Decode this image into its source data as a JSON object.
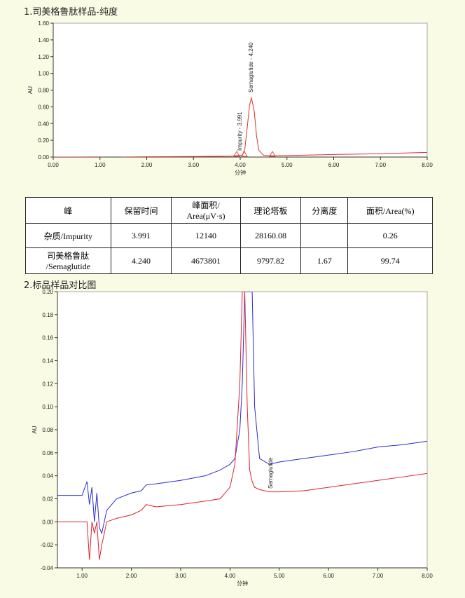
{
  "chart_data": [
    {
      "type": "line",
      "title": "1.司美格鲁肽样品-纯度",
      "xlabel": "分钟",
      "ylabel": "AU",
      "color": "#e0302a",
      "annotations": [
        "Impurity - 3.991",
        "Semaglutide - 4.240"
      ],
      "x": [
        0,
        0.5,
        0.95,
        1.0,
        1.05,
        1.1,
        1.2,
        1.3,
        1.4,
        1.5,
        2.0,
        3.0,
        3.8,
        3.95,
        3.99,
        4.05,
        4.1,
        4.15,
        4.2,
        4.24,
        4.3,
        4.35,
        4.4,
        4.5,
        4.7,
        5,
        6,
        7,
        8
      ],
      "values": [
        0,
        0,
        0.001,
        -0.005,
        0.002,
        -0.01,
        -0.005,
        -0.02,
        -0.005,
        0,
        0.003,
        0.006,
        0.01,
        0.018,
        0.02,
        0.025,
        0.1,
        0.35,
        0.62,
        0.71,
        0.55,
        0.25,
        0.08,
        0.02,
        0.015,
        0.018,
        0.03,
        0.04,
        0.055
      ],
      "xlim": [
        0,
        8
      ],
      "ylim": [
        0,
        1.6
      ],
      "xticks": [
        {
          "value": 0,
          "label": "0.00"
        },
        {
          "value": 1,
          "label": "1.00"
        },
        {
          "value": 2,
          "label": "2.00"
        },
        {
          "value": 3,
          "label": "3.00"
        },
        {
          "value": 4,
          "label": "4.00"
        },
        {
          "value": 5,
          "label": "5.00"
        },
        {
          "value": 6,
          "label": "6.00"
        },
        {
          "value": 7,
          "label": "7.00"
        },
        {
          "value": 8,
          "label": "8.00"
        }
      ],
      "yticks": [
        {
          "value": 0,
          "label": "0.00"
        },
        {
          "value": 0.2,
          "label": "0.20"
        },
        {
          "value": 0.4,
          "label": "0.40"
        },
        {
          "value": 0.6,
          "label": "0.60"
        },
        {
          "value": 0.8,
          "label": "0.80"
        },
        {
          "value": 1.0,
          "label": "1.00"
        },
        {
          "value": 1.2,
          "label": "1.20"
        },
        {
          "value": 1.4,
          "label": "1.40"
        },
        {
          "value": 1.6,
          "label": "1.60"
        }
      ]
    },
    {
      "type": "line",
      "title": "2.标品样品对比图",
      "xlabel": "分钟",
      "ylabel": "AU",
      "annotations": [
        "Semaglutide"
      ],
      "x": [
        0.5,
        1.0,
        1.1,
        1.15,
        1.2,
        1.25,
        1.3,
        1.35,
        1.4,
        1.5,
        1.7,
        2.0,
        2.2,
        2.3,
        2.5,
        3.0,
        3.5,
        3.8,
        4.0,
        4.1,
        4.2,
        4.25,
        4.3,
        4.35,
        4.4,
        4.45,
        4.5,
        4.6,
        4.8,
        5.0,
        5.5,
        6.0,
        6.5,
        7.0,
        7.5,
        8.0
      ],
      "series": [
        {
          "color": "#2a2ad0",
          "values": [
            0.023,
            0.023,
            0.035,
            0.015,
            0.03,
            0.0,
            0.025,
            -0.005,
            -0.01,
            0.01,
            0.02,
            0.025,
            0.027,
            0.032,
            0.033,
            0.036,
            0.04,
            0.045,
            0.05,
            0.055,
            0.08,
            0.12,
            0.2,
            0.2,
            0.2,
            0.2,
            0.1,
            0.055,
            0.05,
            0.052,
            0.055,
            0.058,
            0.061,
            0.065,
            0.067,
            0.07
          ]
        },
        {
          "color": "#e0202a",
          "values": [
            0.0,
            0.0,
            0.0,
            -0.033,
            0.0,
            -0.01,
            0.0,
            -0.033,
            -0.02,
            0.0,
            0.003,
            0.006,
            0.01,
            0.015,
            0.013,
            0.015,
            0.018,
            0.02,
            0.03,
            0.05,
            0.12,
            0.2,
            0.2,
            0.1,
            0.045,
            0.035,
            0.03,
            0.028,
            0.026,
            0.026,
            0.027,
            0.03,
            0.033,
            0.036,
            0.039,
            0.042
          ]
        }
      ],
      "xlim": [
        0.5,
        8
      ],
      "ylim": [
        -0.04,
        0.2
      ],
      "xticks": [
        {
          "value": 1,
          "label": "1.00"
        },
        {
          "value": 2,
          "label": "2.00"
        },
        {
          "value": 3,
          "label": "3.00"
        },
        {
          "value": 4,
          "label": "4.00"
        },
        {
          "value": 5,
          "label": "5.00"
        },
        {
          "value": 6,
          "label": "6.00"
        },
        {
          "value": 7,
          "label": "7.00"
        },
        {
          "value": 8,
          "label": "8.00"
        }
      ],
      "yticks": [
        {
          "value": -0.04,
          "label": "-0.04"
        },
        {
          "value": -0.02,
          "label": "-0.02"
        },
        {
          "value": 0,
          "label": "0.00"
        },
        {
          "value": 0.02,
          "label": "0.02"
        },
        {
          "value": 0.04,
          "label": "0.04"
        },
        {
          "value": 0.06,
          "label": "0.06"
        },
        {
          "value": 0.08,
          "label": "0.08"
        },
        {
          "value": 0.1,
          "label": "0.10"
        },
        {
          "value": 0.12,
          "label": "0.12"
        },
        {
          "value": 0.14,
          "label": "0.14"
        },
        {
          "value": 0.16,
          "label": "0.16"
        },
        {
          "value": 0.18,
          "label": "0.18"
        },
        {
          "value": 0.2,
          "label": "0.20"
        }
      ]
    }
  ],
  "table": {
    "header": [
      "峰",
      "保留时间",
      "峰面积/\nArea(μV·s)",
      "理论塔板",
      "分离度",
      "面积/Area(%)"
    ],
    "rows": [
      [
        "杂质/Impurity",
        "3.991",
        "12140",
        "28160.08",
        null,
        "0.26"
      ],
      [
        "司美格鲁肽\n/Semaglutide",
        "4.240",
        "4673801",
        "9797.82",
        "1.67",
        "99.74"
      ]
    ]
  }
}
